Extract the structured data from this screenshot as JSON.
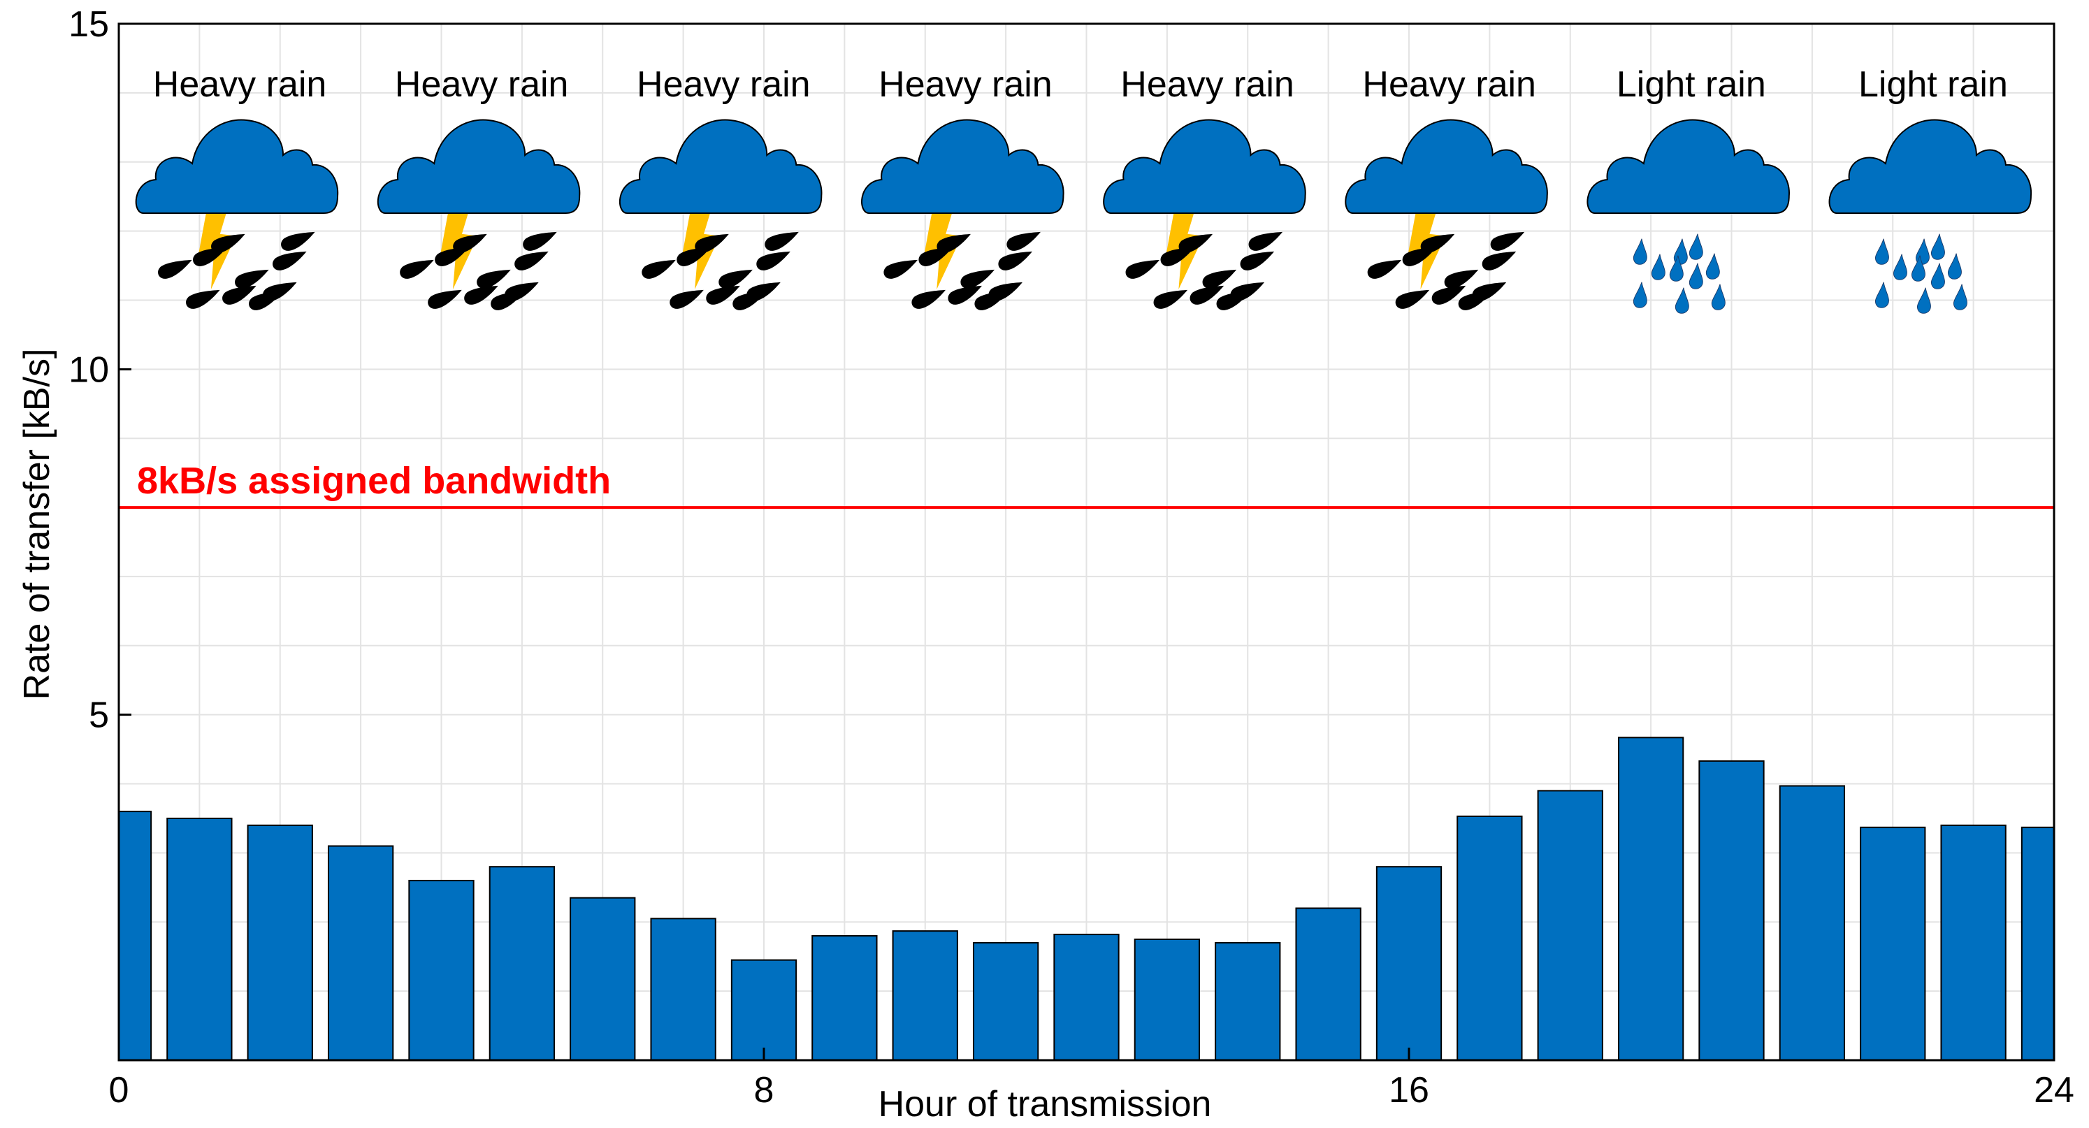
{
  "chart_data": {
    "type": "bar",
    "xlabel": "Hour of transmission",
    "ylabel": "Rate of transfer [kB/s]",
    "xlim": [
      0,
      24
    ],
    "ylim": [
      0,
      15
    ],
    "grid": true,
    "x_ticks": [
      0,
      8,
      16,
      24
    ],
    "y_ticks": [
      5,
      10,
      15
    ],
    "x": [
      0,
      1,
      2,
      3,
      4,
      5,
      6,
      7,
      8,
      9,
      10,
      11,
      12,
      13,
      14,
      15,
      16,
      17,
      18,
      19,
      20,
      21,
      22,
      23,
      24
    ],
    "values": [
      3.6,
      3.5,
      3.4,
      3.1,
      2.6,
      2.8,
      2.35,
      2.05,
      1.45,
      1.8,
      1.87,
      1.7,
      1.82,
      1.75,
      1.7,
      2.2,
      2.8,
      3.53,
      3.9,
      4.67,
      4.33,
      3.97,
      3.37,
      3.4,
      3.37
    ],
    "bar_color": "#0070C0",
    "reference_line": {
      "value": 8,
      "label": "8kB/s assigned bandwidth",
      "color": "#ff0000"
    },
    "annotations": [
      {
        "label": "Heavy rain",
        "icon": "thunderstorm-icon"
      },
      {
        "label": "Heavy rain",
        "icon": "thunderstorm-icon"
      },
      {
        "label": "Heavy rain",
        "icon": "thunderstorm-icon"
      },
      {
        "label": "Heavy rain",
        "icon": "thunderstorm-icon"
      },
      {
        "label": "Heavy rain",
        "icon": "thunderstorm-icon"
      },
      {
        "label": "Heavy rain",
        "icon": "thunderstorm-icon"
      },
      {
        "label": "Light rain",
        "icon": "light-rain-icon"
      },
      {
        "label": "Light rain",
        "icon": "light-rain-icon"
      }
    ],
    "colors": {
      "cloud": "#0070C0",
      "lightning": "#FFC000",
      "heavy_drop": "#000000",
      "light_drop": "#0070C0"
    }
  }
}
